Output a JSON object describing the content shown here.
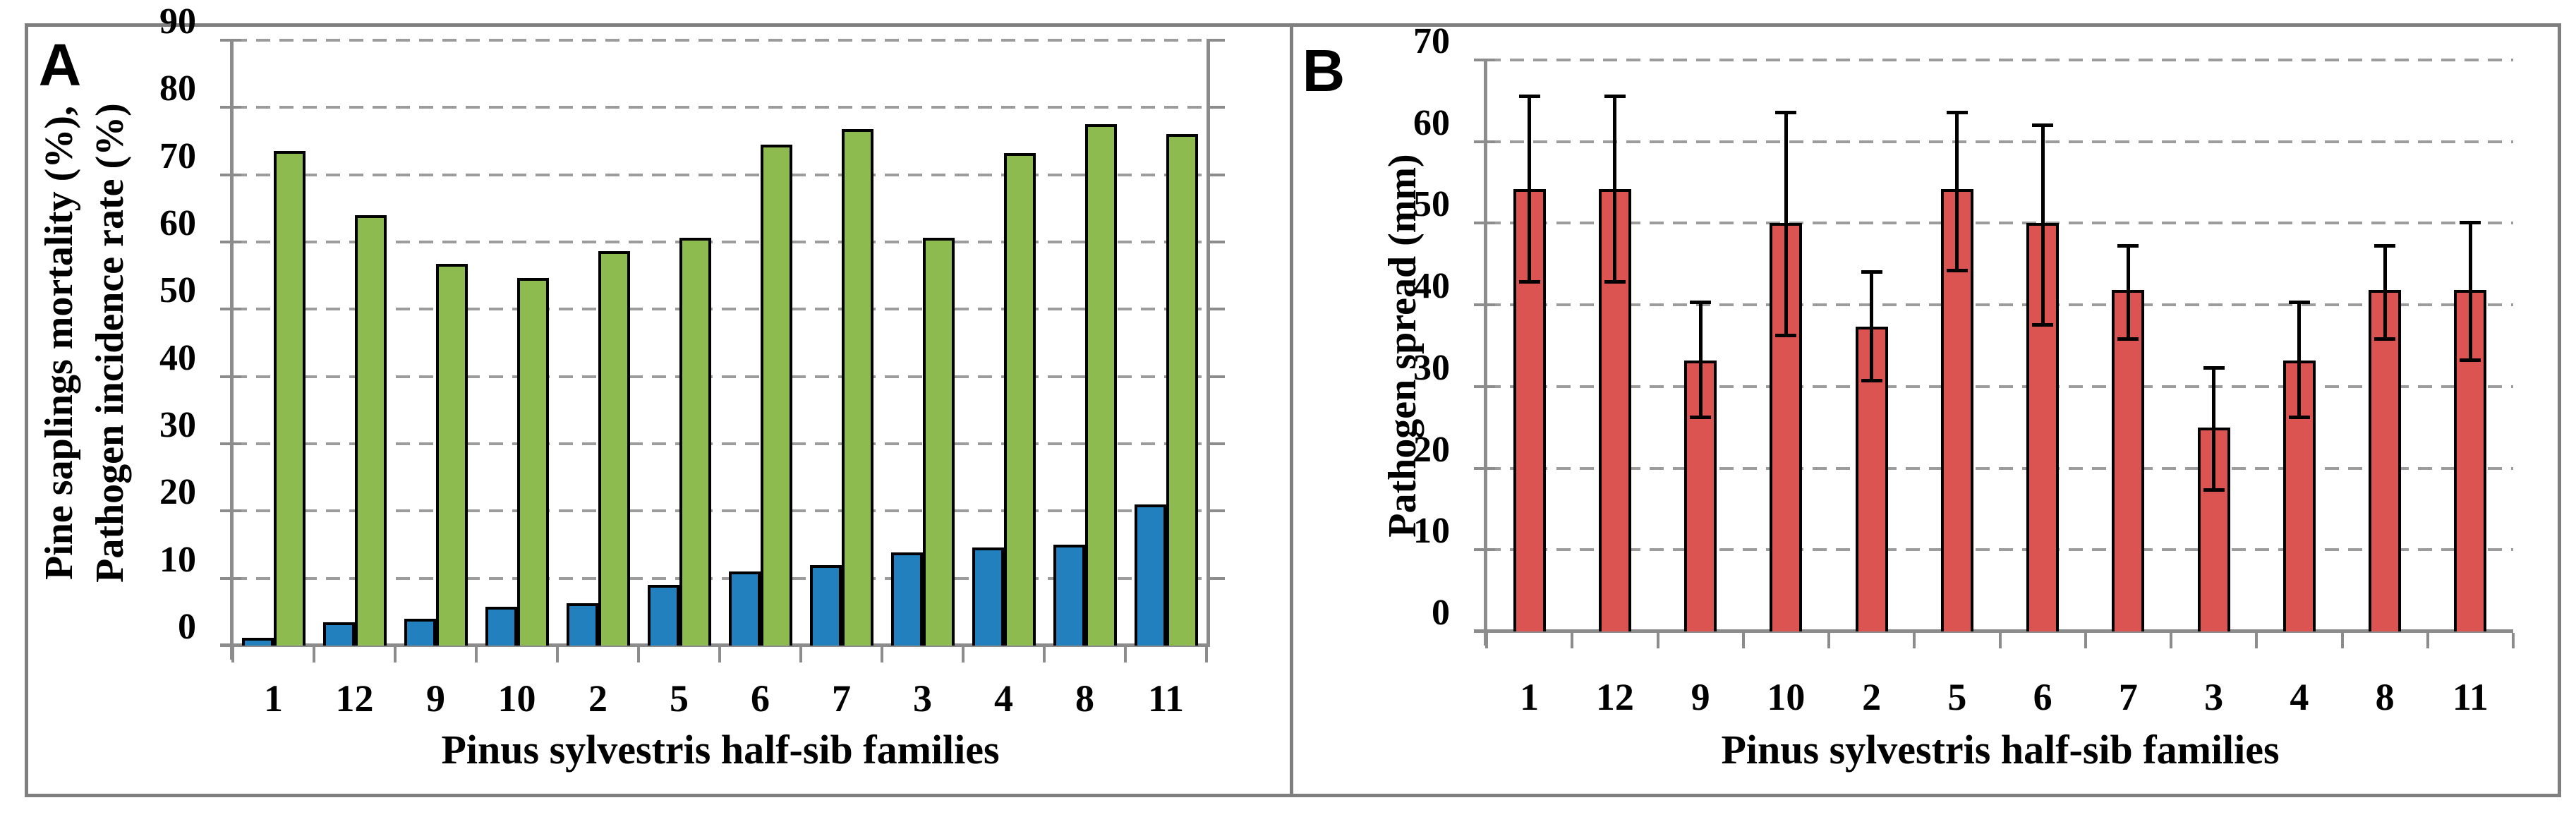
{
  "figure": {
    "panel_count": 2,
    "background": "#FFFFFF"
  },
  "styles": {
    "grid_color": "#9C9C9C",
    "axis_color": "#8C8C8C",
    "figure_border_color": "#7F7F7F",
    "bar_outline_color": "#000000",
    "error_bar_color": "#000000",
    "text_color": "#000000"
  },
  "chart_data": [
    {
      "type": "bar",
      "panel_label": "A",
      "ylabel_line1": "Pine saplings mortality (%),",
      "ylabel_line2": "Pathogen incidence rate (%)",
      "xlabel": "Pinus sylvestris half-sib families",
      "categories": [
        "1",
        "12",
        "9",
        "10",
        "2",
        "5",
        "6",
        "7",
        "3",
        "4",
        "8",
        "11"
      ],
      "series": [
        {
          "name": "Pine saplings mortality (%)",
          "color": "#2380BE",
          "values": [
            1.2,
            3.5,
            4,
            5.8,
            6.3,
            9,
            11,
            12,
            13.8,
            14.6,
            15,
            21
          ]
        },
        {
          "name": "Pathogen incidence rate (%)",
          "color": "#8DBB50",
          "values": [
            73.5,
            64,
            56.7,
            54.6,
            58.6,
            60.6,
            74.5,
            76.8,
            60.6,
            73.2,
            77.5,
            76
          ]
        }
      ],
      "ylim": [
        0,
        90
      ],
      "yticks": [
        0,
        10,
        20,
        30,
        40,
        50,
        60,
        70,
        80,
        90
      ],
      "grid": "dashed-horizontal",
      "legend": "none"
    },
    {
      "type": "bar",
      "panel_label": "B",
      "ylabel": "Pathogen spread (mm)",
      "xlabel": "Pinus sylvestris half-sib families",
      "categories": [
        "1",
        "12",
        "9",
        "10",
        "2",
        "5",
        "6",
        "7",
        "3",
        "4",
        "8",
        "11"
      ],
      "series": [
        {
          "name": "Pathogen spread (mm)",
          "color": "#DC5452",
          "values": [
            54.2,
            54.2,
            33.2,
            50,
            37.3,
            54.2,
            50,
            41.8,
            25,
            33.2,
            41.8,
            41.8
          ],
          "error_high": [
            65.5,
            65.5,
            40.3,
            63.5,
            44,
            63.5,
            62,
            47.2,
            32.2,
            40.3,
            47.2,
            50
          ],
          "error_low": [
            42.8,
            42.8,
            26.2,
            36.2,
            30.7,
            44.2,
            37.5,
            35.8,
            17.3,
            26.2,
            35.8,
            33.2
          ]
        }
      ],
      "ylim": [
        0,
        70
      ],
      "yticks": [
        0,
        10,
        20,
        30,
        40,
        50,
        60,
        70
      ],
      "grid": "dashed-horizontal",
      "legend": "none"
    }
  ]
}
